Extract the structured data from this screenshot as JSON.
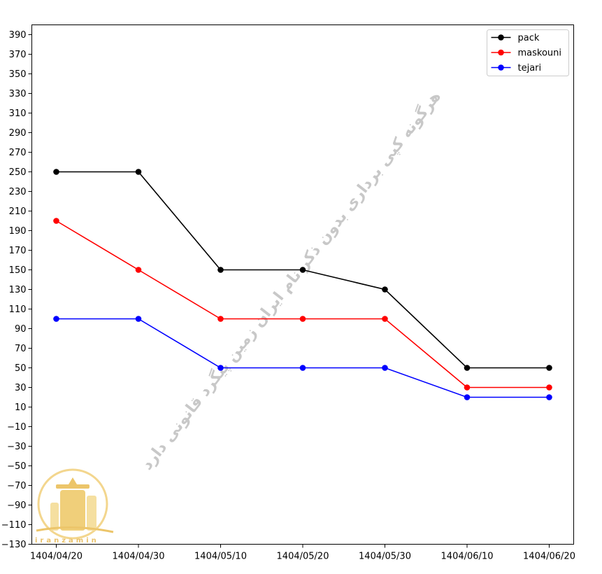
{
  "chart_data": {
    "type": "line",
    "x": [
      "1404/04/20",
      "1404/04/30",
      "1404/05/10",
      "1404/05/20",
      "1404/05/30",
      "1404/06/10",
      "1404/06/20"
    ],
    "series": [
      {
        "name": "pack",
        "values": [
          250,
          250,
          150,
          150,
          130,
          50,
          50
        ],
        "color": "#000000"
      },
      {
        "name": "maskouni",
        "values": [
          200,
          150,
          100,
          100,
          100,
          30,
          30
        ],
        "color": "#ff0000"
      },
      {
        "name": "tejari",
        "values": [
          100,
          100,
          50,
          50,
          50,
          20,
          20
        ],
        "color": "#0000ff"
      }
    ],
    "title": "",
    "xlabel": "",
    "ylabel": "",
    "ylim": [
      -130,
      400
    ],
    "yticks": [
      -130,
      -110,
      -90,
      -70,
      -50,
      -30,
      -10,
      10,
      30,
      50,
      70,
      90,
      110,
      130,
      150,
      170,
      190,
      210,
      230,
      250,
      270,
      290,
      310,
      330,
      350,
      370,
      390
    ],
    "grid": false,
    "legend_position": "top-right",
    "marker": "circle"
  },
  "watermark": {
    "text": "هرگونه کپی برداری بدون ذکر نام ایران زمین پیگرد قانونی دارد",
    "color": "#c8c8c8"
  },
  "logo": {
    "text": "iranzamin",
    "icon": "building-logo-icon",
    "color": "#e9c16a"
  }
}
